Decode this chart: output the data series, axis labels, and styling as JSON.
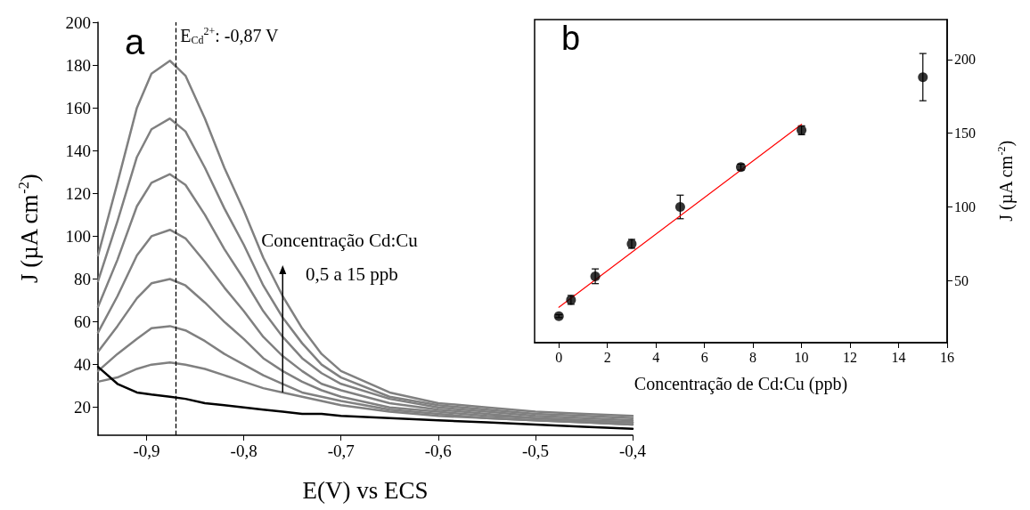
{
  "chart_data": [
    {
      "type": "line",
      "xlabel": "E(V) vs ECS",
      "ylabel": "J (µA cm$^{-2}$)",
      "x": [
        -0.95,
        -0.93,
        -0.91,
        -0.895,
        -0.876,
        -0.86,
        -0.84,
        -0.82,
        -0.8,
        -0.78,
        -0.76,
        -0.74,
        -0.72,
        -0.7,
        -0.65,
        -0.6,
        -0.55,
        -0.5,
        -0.45,
        -0.4
      ],
      "series": [
        {
          "color": "#808080",
          "values": [
            91,
            125,
            160,
            176,
            182,
            175,
            155,
            132,
            112,
            90,
            72,
            57,
            45,
            37,
            27,
            22,
            20,
            18,
            17,
            16
          ]
        },
        {
          "color": "#808080",
          "values": [
            79,
            107,
            137,
            150,
            155,
            149,
            132,
            113,
            96,
            77,
            62,
            50,
            40,
            34,
            25,
            21,
            19,
            17,
            16,
            15
          ]
        },
        {
          "color": "#808080",
          "values": [
            67,
            89,
            114,
            125,
            129,
            124,
            110,
            94,
            80,
            65,
            53,
            43,
            36,
            31,
            24,
            20,
            18,
            16,
            15,
            14
          ]
        },
        {
          "color": "#808080",
          "values": [
            55,
            72,
            91,
            100,
            103,
            99,
            88,
            76,
            65,
            53,
            44,
            37,
            31,
            28,
            22,
            19,
            17,
            15,
            14,
            13
          ]
        },
        {
          "color": "#808080",
          "values": [
            46,
            58,
            71,
            78,
            80,
            77,
            69,
            60,
            52,
            43,
            37,
            32,
            28,
            25,
            20,
            18,
            16,
            15,
            14,
            13
          ]
        },
        {
          "color": "#808080",
          "values": [
            37,
            45,
            52,
            57,
            58,
            56,
            51,
            45,
            40,
            35,
            31,
            27,
            25,
            23,
            19,
            17,
            15,
            14,
            13,
            12
          ]
        },
        {
          "color": "#808080",
          "values": [
            32,
            34,
            38,
            40,
            41,
            40,
            38,
            35,
            32,
            29,
            27,
            25,
            23,
            21,
            18,
            16,
            15,
            14,
            13,
            12
          ]
        },
        {
          "color": "#000000",
          "values": [
            39,
            31,
            27,
            26,
            25,
            24,
            22,
            21,
            20,
            19,
            18,
            17,
            17,
            16,
            15,
            14,
            13,
            12,
            11,
            10
          ]
        }
      ],
      "xlim": [
        -0.95,
        -0.4
      ],
      "xticks": [
        {
          "value": -0.9,
          "label": "-0,9"
        },
        {
          "value": -0.8,
          "label": "-0,8"
        },
        {
          "value": -0.7,
          "label": "-0,7"
        },
        {
          "value": -0.6,
          "label": "-0,6"
        },
        {
          "value": -0.5,
          "label": "-0,5"
        },
        {
          "value": -0.4,
          "label": "-0,4"
        }
      ],
      "ylim": [
        7,
        200
      ],
      "yticks": [
        20,
        40,
        60,
        80,
        100,
        120,
        140,
        160,
        180,
        200
      ],
      "ref_lines": [
        {
          "axis": "x",
          "value": -0.87,
          "label": "E$_{Cd}$$^{2+}$: -0,87 V",
          "color": "#000000",
          "line_style": "dashed"
        }
      ],
      "annotations": [
        "a",
        {
          "text": "Concentração Cd:Cu",
          "x": -0.76,
          "y": 27
        },
        "0,5 a 15 ppb"
      ],
      "marker": "none",
      "line_style": "solid"
    },
    {
      "type": "scatter",
      "xlabel": "Concentração de Cd:Cu (ppb)",
      "y2label": "J (µA cm$^{-2}$)",
      "x": [
        0,
        0.5,
        1.5,
        3,
        5,
        7.5,
        10,
        15
      ],
      "series": [
        {
          "color": "#000000",
          "axis": "y2",
          "values": [
            26,
            37,
            53,
            75,
            100,
            127,
            152,
            188
          ],
          "errors": [
            1,
            3,
            5,
            3,
            8,
            2,
            3,
            16
          ]
        },
        {
          "type": "line",
          "color": "#ff0000",
          "axis": "y2",
          "marker": "none",
          "x": [
            0,
            10
          ],
          "values": [
            32,
            156
          ]
        }
      ],
      "xlim": [
        -1,
        16
      ],
      "xticks": [
        0,
        2,
        4,
        6,
        8,
        10,
        12,
        14,
        16
      ],
      "y2lim": [
        8,
        227
      ],
      "y2ticks": [
        50,
        100,
        150,
        200
      ],
      "annotations": [
        "b"
      ],
      "marker": "circle"
    }
  ]
}
